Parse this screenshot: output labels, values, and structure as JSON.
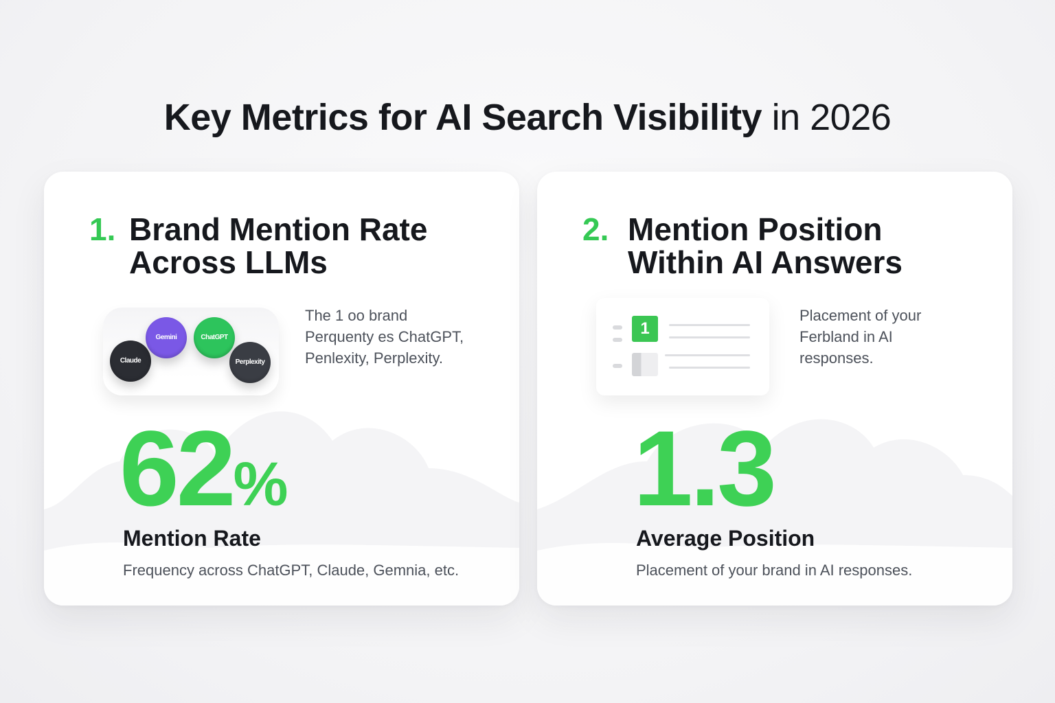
{
  "title": {
    "bold": "Key Metrics for AI Search Visibility",
    "light": "in 2026"
  },
  "cards": [
    {
      "number": "1.",
      "heading_line1": "Brand Mention Rate",
      "heading_line2": "Across LLMs",
      "description_lines": [
        "The 1 oo brand",
        "Perquenty es ChatGPT,",
        "Penlexity, Perplexity."
      ],
      "value": "62",
      "value_unit": "%",
      "metric_label": "Mention Rate",
      "metric_sub": "Frequency across ChatGPT, Claude, Gemnia, etc.",
      "icon_bubbles": [
        {
          "name": "claude",
          "label": "Claude",
          "color": "#2b2d33"
        },
        {
          "name": "gemini",
          "label": "Gemini",
          "color": "#7a58e6"
        },
        {
          "name": "chatgpt",
          "label": "ChatGPT",
          "color": "#2dc45c"
        },
        {
          "name": "perplexity",
          "label": "Perplexity",
          "color": "#3a3d44"
        }
      ]
    },
    {
      "number": "2.",
      "heading_line1": "Mention Position",
      "heading_line2": "Within AI Answers",
      "description_lines": [
        "Placement of your",
        "Ferbland in AI",
        "responses."
      ],
      "rank_badge": "1",
      "value": "1.3",
      "metric_label": "Average Position",
      "metric_sub": "Placement of your brand in AI responses."
    }
  ],
  "colors": {
    "accent_green": "#3ed155",
    "number_green": "#35c954",
    "heading": "#16181d",
    "body_text": "#4c515a"
  }
}
